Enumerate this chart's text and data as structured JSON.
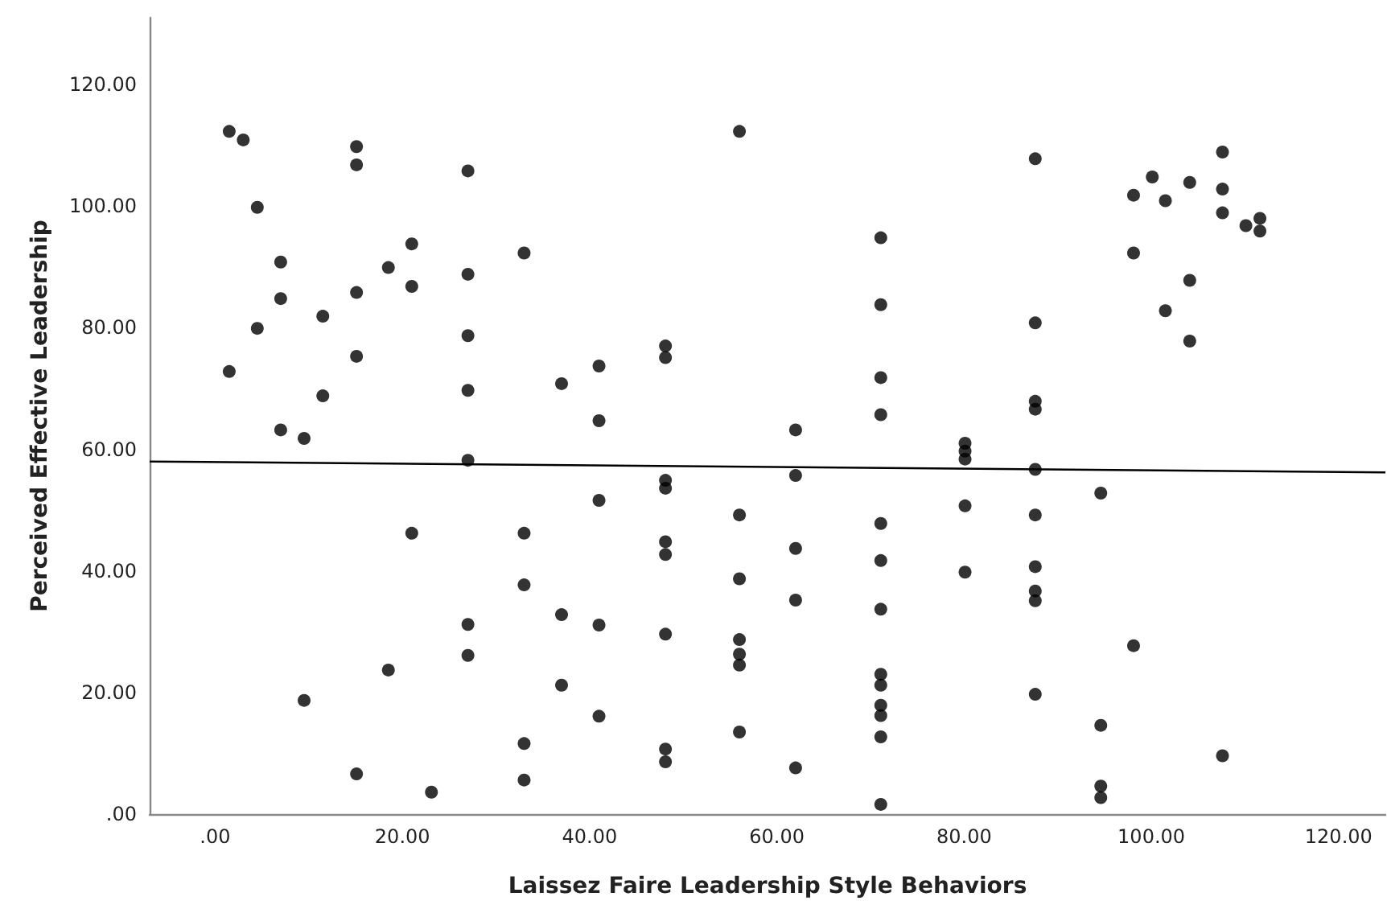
{
  "chart_data": {
    "type": "scatter",
    "xlabel": "Laissez Faire Leadership Style Behaviors",
    "ylabel": "Perceived Effective Leadership",
    "xlim": [
      -7,
      125
    ],
    "ylim": [
      0,
      131
    ],
    "xticks": [
      {
        "value": 0,
        "label": ".00"
      },
      {
        "value": 20,
        "label": "20.00"
      },
      {
        "value": 40,
        "label": "40.00"
      },
      {
        "value": 60,
        "label": "60.00"
      },
      {
        "value": 80,
        "label": "80.00"
      },
      {
        "value": 100,
        "label": "100.00"
      },
      {
        "value": 120,
        "label": "120.00"
      }
    ],
    "yticks": [
      {
        "value": 0,
        "label": ".00"
      },
      {
        "value": 20,
        "label": "20.00"
      },
      {
        "value": 40,
        "label": "40.00"
      },
      {
        "value": 60,
        "label": "60.00"
      },
      {
        "value": 80,
        "label": "80.00"
      },
      {
        "value": 100,
        "label": "100.00"
      },
      {
        "value": 120,
        "label": "120.00"
      }
    ],
    "grid": false,
    "marker": "circle",
    "series": [
      {
        "color": "#000000",
        "x": [
          1.5,
          3.0,
          15.1,
          15.1,
          27.0,
          4.5,
          21.0,
          33.0,
          7.0,
          18.5,
          27.0,
          21.0,
          7.0,
          15.1,
          11.5,
          4.5,
          27.0,
          15.1,
          1.5,
          11.5,
          27.0,
          37.0,
          7.0,
          9.5,
          27.0,
          21.0,
          33.0,
          33.0,
          37.0,
          27.0,
          27.0,
          18.5,
          37.0,
          9.5,
          33.0,
          15.1,
          33.0,
          23.1,
          41.0,
          41.0,
          41.0,
          41.0,
          41.0,
          48.1,
          48.1,
          48.1,
          48.1,
          48.1,
          48.1,
          48.1,
          48.1,
          48.1,
          56.0,
          56.0,
          56.0,
          56.0,
          56.0,
          56.0,
          56.0,
          62.0,
          62.0,
          62.0,
          62.0,
          62.0,
          71.1,
          71.1,
          71.1,
          71.1,
          71.1,
          71.1,
          71.1,
          71.1,
          71.1,
          71.1,
          71.1,
          71.1,
          71.1,
          80.1,
          80.1,
          80.1,
          80.1,
          80.1,
          87.6,
          87.6,
          87.6,
          87.6,
          87.6,
          87.6,
          87.6,
          87.6,
          87.6,
          87.6,
          94.6,
          94.6,
          94.6,
          94.6,
          98.1,
          98.1,
          98.1,
          100.1,
          101.5,
          101.5,
          104.1,
          104.1,
          104.1,
          107.6,
          107.6,
          107.6,
          107.6,
          110.1,
          111.6,
          111.6
        ],
        "values": [
          112.3,
          110.9,
          109.8,
          106.8,
          105.8,
          99.8,
          93.8,
          92.3,
          90.8,
          89.9,
          88.8,
          86.8,
          84.8,
          85.8,
          81.9,
          79.9,
          78.7,
          75.3,
          72.8,
          68.8,
          69.7,
          70.8,
          63.2,
          61.8,
          58.2,
          46.2,
          46.2,
          37.7,
          32.8,
          31.2,
          26.1,
          23.7,
          21.2,
          18.7,
          11.6,
          6.6,
          5.6,
          3.6,
          73.7,
          64.7,
          51.6,
          31.1,
          16.1,
          77.0,
          75.1,
          54.9,
          53.6,
          44.8,
          42.7,
          29.6,
          10.7,
          8.6,
          112.3,
          49.2,
          38.7,
          28.7,
          26.3,
          24.5,
          13.5,
          63.2,
          55.7,
          43.7,
          35.2,
          7.6,
          94.8,
          83.8,
          71.8,
          65.7,
          47.8,
          41.7,
          33.7,
          23.0,
          21.2,
          17.9,
          16.2,
          12.7,
          1.6,
          61.0,
          59.7,
          58.4,
          50.7,
          39.8,
          107.8,
          80.8,
          67.9,
          66.6,
          56.7,
          49.2,
          40.7,
          36.7,
          35.1,
          19.7,
          52.8,
          14.6,
          4.6,
          2.7,
          101.8,
          92.3,
          27.7,
          104.8,
          100.9,
          82.8,
          103.9,
          87.8,
          77.8,
          108.9,
          102.8,
          98.9,
          9.6,
          96.8,
          98.0,
          95.9
        ]
      },
      {
        "type": "line",
        "color": "#000000",
        "marker": "none",
        "x": [
          -7,
          125
        ],
        "values": [
          58.0,
          56.2
        ]
      }
    ]
  }
}
